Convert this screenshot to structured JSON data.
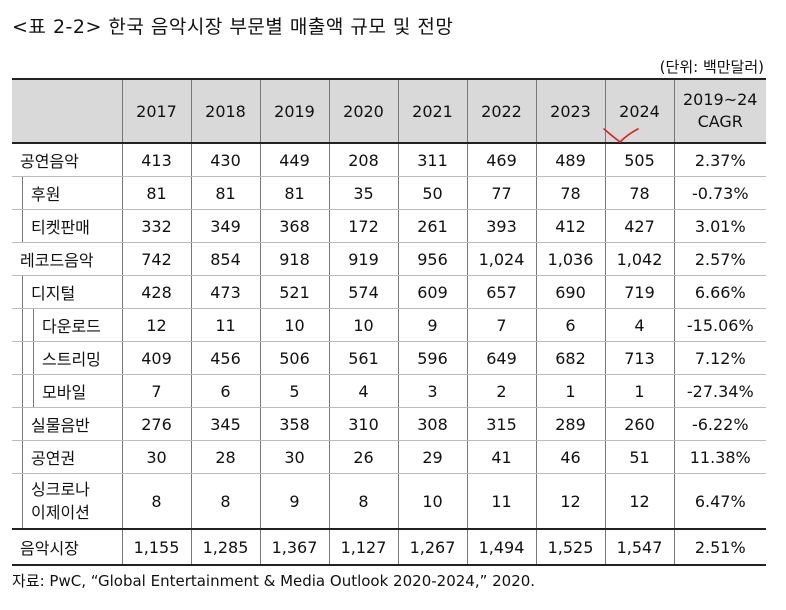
{
  "title": "<표 2-2> 한국 음악시장 부문별 매출액 규모 및 전망",
  "unit": "(단위: 백만달러)",
  "columns": [
    "2017",
    "2018",
    "2019",
    "2020",
    "2021",
    "2022",
    "2023",
    "2024",
    "2019~24 CAGR"
  ],
  "rows": [
    {
      "label": "공연음악",
      "values": [
        "413",
        "430",
        "449",
        "208",
        "311",
        "469",
        "489",
        "505",
        "2.37%"
      ]
    },
    {
      "label": "후원",
      "values": [
        "81",
        "81",
        "81",
        "35",
        "50",
        "77",
        "78",
        "78",
        "-0.73%"
      ]
    },
    {
      "label": "티켓판매",
      "values": [
        "332",
        "349",
        "368",
        "172",
        "261",
        "393",
        "412",
        "427",
        "3.01%"
      ]
    },
    {
      "label": "레코드음악",
      "values": [
        "742",
        "854",
        "918",
        "919",
        "956",
        "1,024",
        "1,036",
        "1,042",
        "2.57%"
      ]
    },
    {
      "label": "디지털",
      "values": [
        "428",
        "473",
        "521",
        "574",
        "609",
        "657",
        "690",
        "719",
        "6.66%"
      ]
    },
    {
      "label": "다운로드",
      "values": [
        "12",
        "11",
        "10",
        "10",
        "9",
        "7",
        "6",
        "4",
        "-15.06%"
      ]
    },
    {
      "label": "스트리밍",
      "values": [
        "409",
        "456",
        "506",
        "561",
        "596",
        "649",
        "682",
        "713",
        "7.12%"
      ]
    },
    {
      "label": "모바일",
      "values": [
        "7",
        "6",
        "5",
        "4",
        "3",
        "2",
        "1",
        "1",
        "-27.34%"
      ]
    },
    {
      "label": "실물음반",
      "values": [
        "276",
        "345",
        "358",
        "310",
        "308",
        "315",
        "289",
        "260",
        "-6.22%"
      ]
    },
    {
      "label": "공연권",
      "values": [
        "30",
        "28",
        "30",
        "26",
        "29",
        "41",
        "46",
        "51",
        "11.38%"
      ]
    },
    {
      "label_line1": "싱크로나",
      "label_line2": "이제이션",
      "values": [
        "8",
        "8",
        "9",
        "8",
        "10",
        "11",
        "12",
        "12",
        "6.47%"
      ]
    }
  ],
  "total": {
    "label": "음악시장",
    "values": [
      "1,155",
      "1,285",
      "1,367",
      "1,127",
      "1,267",
      "1,494",
      "1,525",
      "1,547",
      "2.51%"
    ]
  },
  "source": "자료: PwC, “Global Entertainment & Media Outlook 2020-2024,” 2020."
}
